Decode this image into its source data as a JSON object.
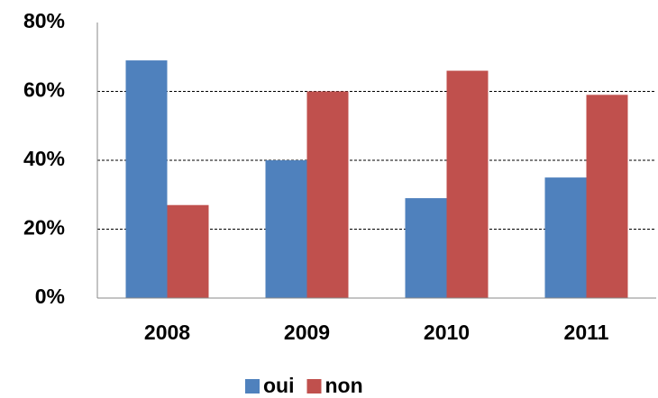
{
  "chart_data": {
    "type": "bar",
    "categories": [
      "2008",
      "2009",
      "2010",
      "2011"
    ],
    "series": [
      {
        "name": "oui",
        "color": "#4f81bd",
        "values": [
          69,
          40,
          29,
          35
        ]
      },
      {
        "name": "non",
        "color": "#c0504d",
        "values": [
          27,
          60,
          66,
          59
        ]
      }
    ],
    "ylim": [
      0,
      80
    ],
    "yticks": [
      {
        "value": 0,
        "label": "0%"
      },
      {
        "value": 20,
        "label": "20%"
      },
      {
        "value": 40,
        "label": "40%"
      },
      {
        "value": 60,
        "label": "60%"
      },
      {
        "value": 80,
        "label": "80%"
      }
    ],
    "grid": true,
    "legend": "bottom"
  }
}
